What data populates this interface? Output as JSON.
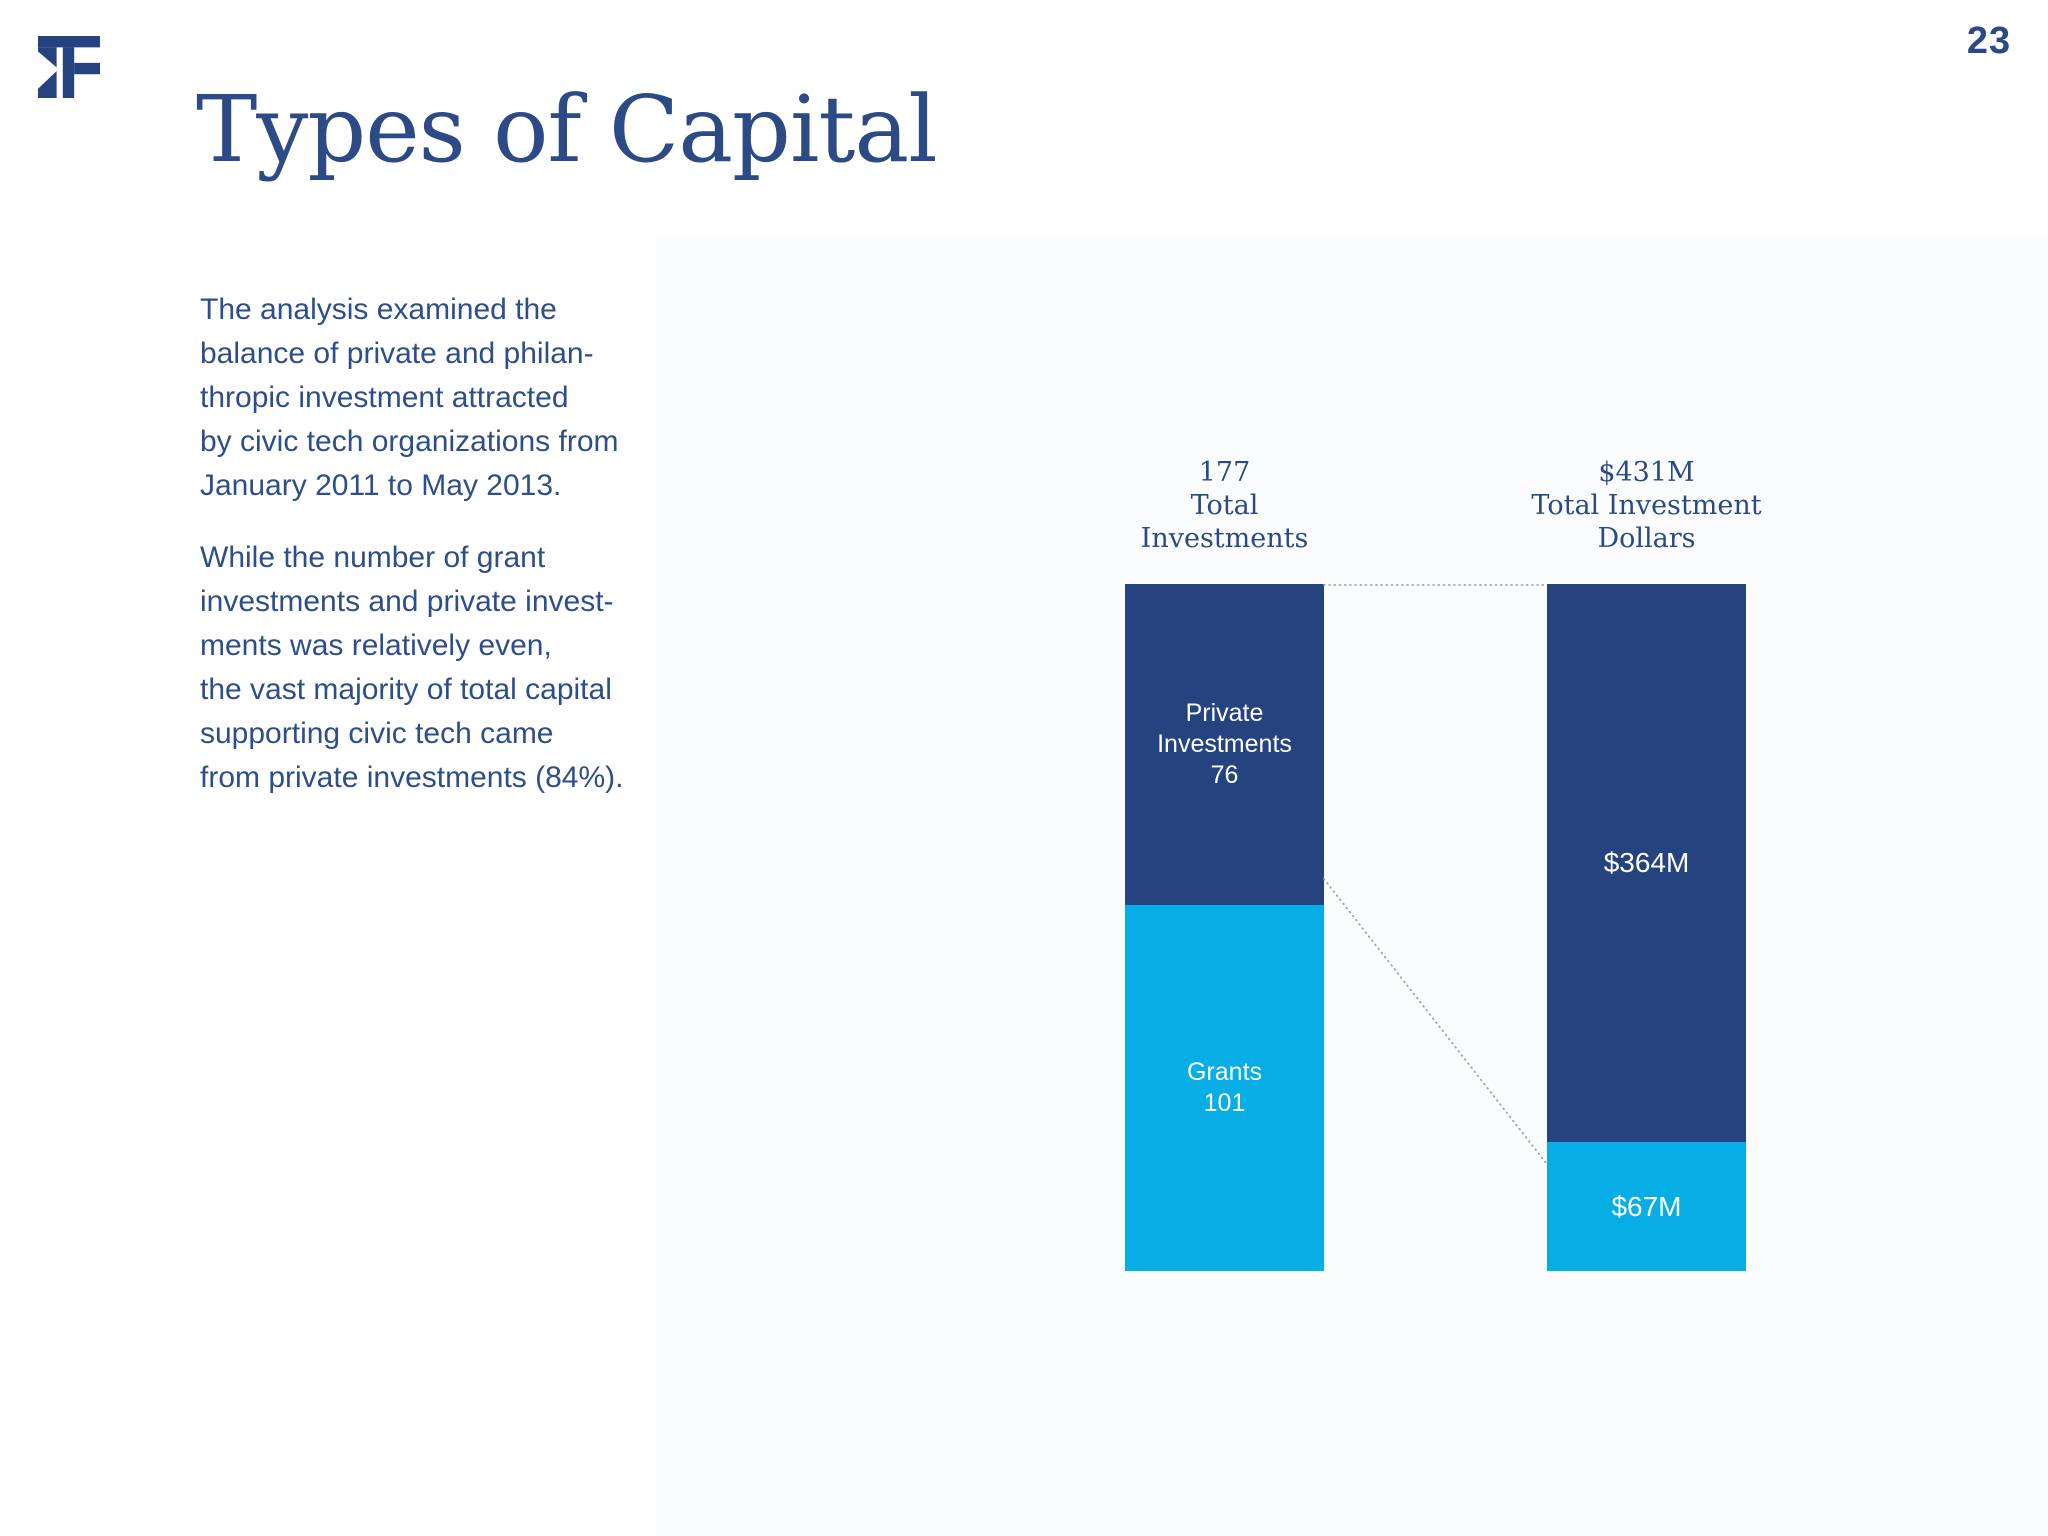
{
  "page": {
    "number": "23"
  },
  "logo": {
    "icon": "kf-monogram",
    "color": "#24437F"
  },
  "title": "Types of Capital",
  "intro": {
    "para1": "The analysis examined the\nbalance of private and philan-\nthropic investment attracted\nby civic tech organizations from\nJanuary 2011 to May 2013.",
    "para2": "While the number of grant\ninvestments and private invest-\nments was relatively even,\nthe vast majority of total capital\nsupporting civic tech came\nfrom private investments (84%)."
  },
  "colors": {
    "dark_blue": "#24437F",
    "light_blue": "#06AEE5",
    "text_blue": "#2D4E8C",
    "connector_gray": "#9BA2B2",
    "label_white": "#FFFFFF"
  },
  "chart_data": {
    "type": "bar",
    "subtype": "stacked-column-comparison",
    "grid": false,
    "legend_position": "none",
    "series": [
      "Private Investments",
      "Grants"
    ],
    "columns": [
      {
        "header": "177\nTotal\nInvestments",
        "total": 177,
        "unit": "number of investments",
        "segments": [
          {
            "series": "Private Investments",
            "label": "Private\nInvestments\n76",
            "value": 76,
            "color": "#24437F"
          },
          {
            "series": "Grants",
            "label": "Grants\n101",
            "value": 101,
            "color": "#06AEE5"
          }
        ]
      },
      {
        "header": "$431M\nTotal Investment\nDollars",
        "total": 431,
        "unit": "USD millions",
        "segments": [
          {
            "series": "Private Investments",
            "label": "$364M",
            "value": 364,
            "color": "#24437F"
          },
          {
            "series": "Grants",
            "label": "$67M",
            "value": 67,
            "color": "#06AEE5"
          }
        ]
      }
    ]
  }
}
